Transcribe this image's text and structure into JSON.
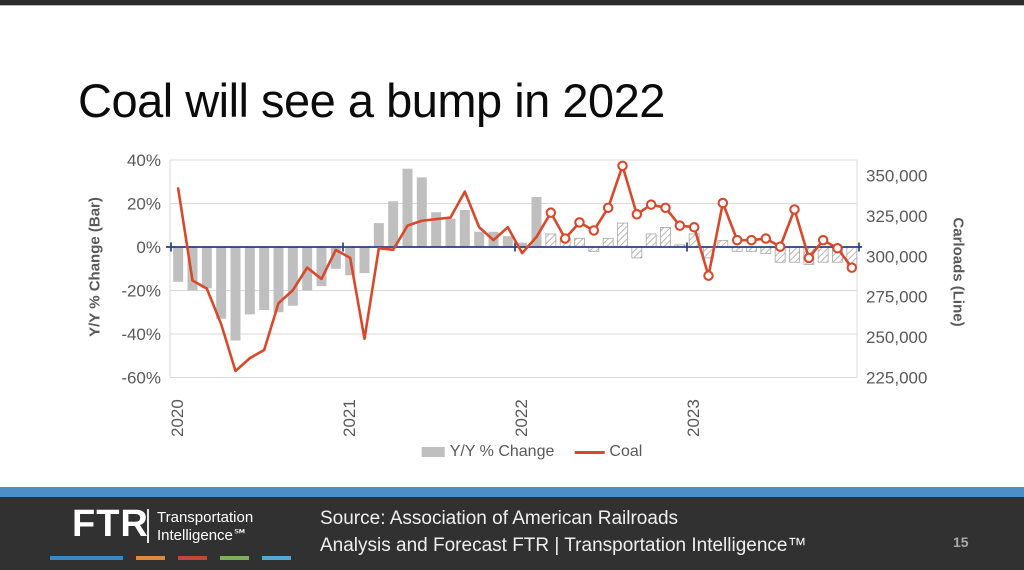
{
  "slide": {
    "title": "Coal will see a bump in 2022",
    "page_number": "15"
  },
  "chart_data": {
    "type": "combo-bar-line",
    "title": "",
    "x_axis": {
      "year_labels": [
        "2020",
        "2021",
        "2022",
        "2023"
      ],
      "start": "Jan 2020",
      "end": "Dec 2023",
      "points_per_year": 12
    },
    "left_axis": {
      "label": "Y/Y % Change (Bar)",
      "min": -60,
      "max": 40,
      "tick_values": [
        40,
        20,
        0,
        -20,
        -40,
        -60
      ],
      "ticks": [
        "40%",
        "20%",
        "0%",
        "-20%",
        "-40%",
        "-60%"
      ]
    },
    "right_axis": {
      "label": "Carloads (Line)",
      "min": 225000,
      "max": 359600,
      "tick_values": [
        350000,
        325000,
        300000,
        275000,
        250000,
        225000
      ],
      "ticks": [
        "350,000",
        "325,000",
        "300,000",
        "275,000",
        "250,000",
        "225,000"
      ]
    },
    "legend": {
      "bar": "Y/Y % Change",
      "line": "Coal"
    },
    "forecast_start_index": 26,
    "forecast_note": "hatched bars and open-circle line markers from Mar 2022 onward",
    "series": [
      {
        "name": "Y/Y % Change",
        "type": "bar",
        "axis": "left",
        "unit": "percent",
        "color": "#BFBFBF",
        "values": [
          -16,
          -20,
          -19,
          -33,
          -43,
          -31,
          -29,
          -30,
          -27,
          -20,
          -18,
          -10,
          -13,
          -12,
          11,
          21,
          36,
          32,
          16,
          13,
          17,
          7,
          7,
          5,
          2,
          23,
          6,
          4,
          4,
          -2,
          4,
          11,
          -5,
          6,
          9,
          1,
          6,
          -5,
          3,
          -2,
          -2,
          -3,
          -7,
          -7,
          -8,
          -7,
          -7,
          -8
        ]
      },
      {
        "name": "Coal",
        "type": "line",
        "axis": "right",
        "unit": "carloads",
        "color": "#D9482B",
        "values": [
          342000,
          285000,
          280000,
          258000,
          229000,
          237000,
          242000,
          271000,
          279000,
          293000,
          286000,
          304000,
          299000,
          249000,
          305000,
          304000,
          319000,
          322000,
          323000,
          324000,
          340000,
          318000,
          310000,
          318000,
          302000,
          312000,
          327000,
          311000,
          321000,
          316000,
          330000,
          356000,
          326000,
          332000,
          330000,
          319000,
          318000,
          288000,
          333000,
          310000,
          310000,
          311000,
          306000,
          329000,
          299000,
          310000,
          305000,
          293000
        ]
      }
    ],
    "colors": {
      "zero_line": "#26417F",
      "gridline": "#D9D9D9",
      "tick_text": "#595959",
      "bar_fill": "#BFBFBF",
      "hatch_stroke": "#A6A6A6",
      "line": "#D9482B"
    }
  },
  "footer": {
    "logo": {
      "brand": "FTR",
      "tagline_line1": "Transportation",
      "tagline_line2": "Intelligence℠"
    },
    "source_line1": "Source: Association of American Railroads",
    "source_line2": "Analysis and Forecast FTR | Transportation Intelligence™"
  }
}
